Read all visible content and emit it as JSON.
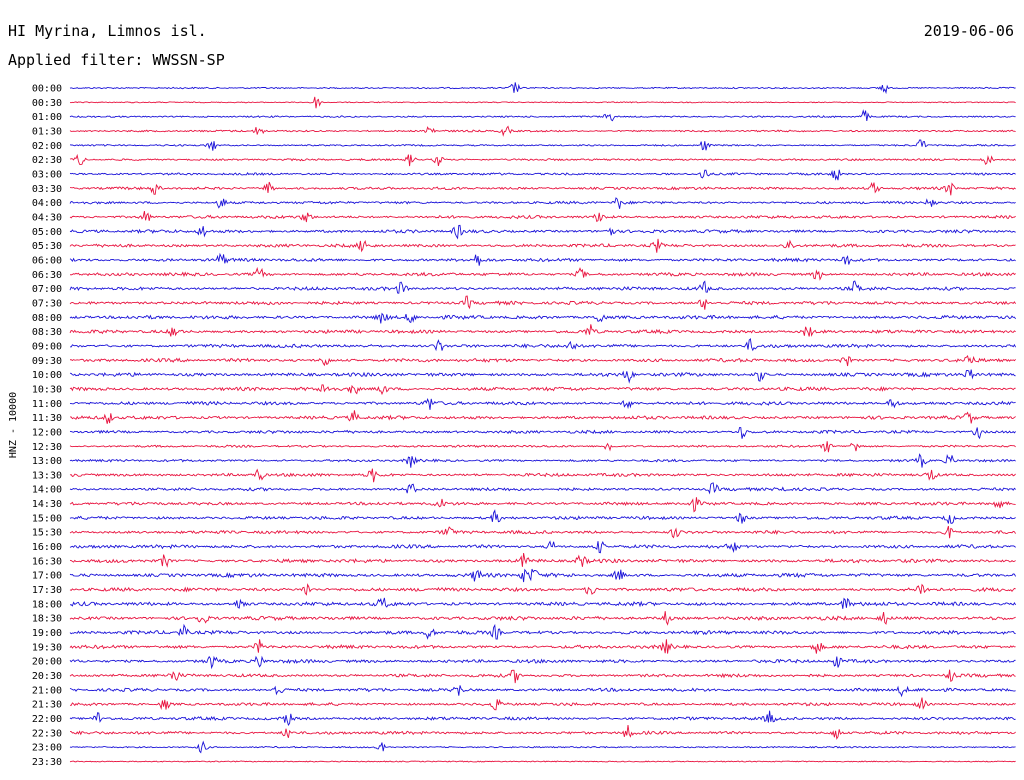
{
  "header": {
    "station": "HI Myrina, Limnos isl.",
    "date": "2019-06-06",
    "filter": "Applied filter: WWSSN-SP"
  },
  "chart_data": {
    "type": "line",
    "title": "HI Myrina, Limnos isl.",
    "subtitle": "Applied filter: WWSSN-SP",
    "ylabel": "HNZ - 10000",
    "xlabel": "",
    "grid": false,
    "colors": {
      "even": "#1a12d8",
      "odd": "#e8133f"
    },
    "rows": [
      {
        "label": "00:00",
        "activity": 0.15,
        "bursts": [
          0.47,
          0.86
        ]
      },
      {
        "label": "00:30",
        "activity": 0.05,
        "bursts": [
          0.26
        ]
      },
      {
        "label": "01:00",
        "activity": 0.2,
        "bursts": [
          0.57,
          0.84
        ]
      },
      {
        "label": "01:30",
        "activity": 0.25,
        "bursts": [
          0.2,
          0.38,
          0.46
        ]
      },
      {
        "label": "02:00",
        "activity": 0.2,
        "bursts": [
          0.15,
          0.67,
          0.9
        ]
      },
      {
        "label": "02:30",
        "activity": 0.3,
        "bursts": [
          0.01,
          0.36,
          0.39,
          0.97
        ]
      },
      {
        "label": "03:00",
        "activity": 0.35,
        "bursts": [
          0.67,
          0.81
        ]
      },
      {
        "label": "03:30",
        "activity": 0.45,
        "bursts": [
          0.09,
          0.21,
          0.85,
          0.93
        ]
      },
      {
        "label": "04:00",
        "activity": 0.45,
        "bursts": [
          0.16,
          0.58,
          0.91
        ]
      },
      {
        "label": "04:30",
        "activity": 0.55,
        "bursts": [
          0.08,
          0.25,
          0.56
        ]
      },
      {
        "label": "05:00",
        "activity": 0.6,
        "bursts": [
          0.14,
          0.41,
          0.57
        ]
      },
      {
        "label": "05:30",
        "activity": 0.6,
        "bursts": [
          0.31,
          0.62,
          0.76
        ]
      },
      {
        "label": "06:00",
        "activity": 0.6,
        "bursts": [
          0.16,
          0.43,
          0.82
        ]
      },
      {
        "label": "06:30",
        "activity": 0.6,
        "bursts": [
          0.2,
          0.54,
          0.79
        ]
      },
      {
        "label": "07:00",
        "activity": 0.65,
        "bursts": [
          0.35,
          0.67,
          0.83
        ]
      },
      {
        "label": "07:30",
        "activity": 0.65,
        "bursts": [
          0.42,
          0.67
        ]
      },
      {
        "label": "08:00",
        "activity": 0.7,
        "bursts": [
          0.33,
          0.36,
          0.56
        ]
      },
      {
        "label": "08:30",
        "activity": 0.65,
        "bursts": [
          0.11,
          0.55,
          0.78
        ]
      },
      {
        "label": "09:00",
        "activity": 0.65,
        "bursts": [
          0.39,
          0.53,
          0.72
        ]
      },
      {
        "label": "09:30",
        "activity": 0.65,
        "bursts": [
          0.27,
          0.82,
          0.95
        ]
      },
      {
        "label": "10:00",
        "activity": 0.7,
        "bursts": [
          0.59,
          0.73,
          0.95
        ]
      },
      {
        "label": "10:30",
        "activity": 0.7,
        "bursts": [
          0.27,
          0.3,
          0.33
        ]
      },
      {
        "label": "11:00",
        "activity": 0.65,
        "bursts": [
          0.38,
          0.59,
          0.87
        ]
      },
      {
        "label": "11:30",
        "activity": 0.65,
        "bursts": [
          0.04,
          0.3,
          0.95
        ]
      },
      {
        "label": "12:00",
        "activity": 0.55,
        "bursts": [
          0.71,
          0.96
        ]
      },
      {
        "label": "12:30",
        "activity": 0.35,
        "bursts": [
          0.57,
          0.8,
          0.83
        ]
      },
      {
        "label": "13:00",
        "activity": 0.4,
        "bursts": [
          0.36,
          0.9,
          0.93
        ]
      },
      {
        "label": "13:30",
        "activity": 0.6,
        "bursts": [
          0.2,
          0.32,
          0.91
        ]
      },
      {
        "label": "14:00",
        "activity": 0.55,
        "bursts": [
          0.36,
          0.68,
          0.75
        ]
      },
      {
        "label": "14:30",
        "activity": 0.6,
        "bursts": [
          0.39,
          0.66,
          0.98
        ]
      },
      {
        "label": "15:00",
        "activity": 0.6,
        "bursts": [
          0.45,
          0.71,
          0.93
        ]
      },
      {
        "label": "15:30",
        "activity": 0.6,
        "bursts": [
          0.4,
          0.64,
          0.93
        ]
      },
      {
        "label": "16:00",
        "activity": 0.65,
        "bursts": [
          0.51,
          0.56,
          0.7
        ]
      },
      {
        "label": "16:30",
        "activity": 0.7,
        "bursts": [
          0.1,
          0.48,
          0.54
        ]
      },
      {
        "label": "17:00",
        "activity": 0.75,
        "bursts": [
          0.43,
          0.48,
          0.49,
          0.58
        ]
      },
      {
        "label": "17:30",
        "activity": 0.7,
        "bursts": [
          0.25,
          0.55,
          0.9
        ]
      },
      {
        "label": "18:00",
        "activity": 0.75,
        "bursts": [
          0.18,
          0.33,
          0.82
        ]
      },
      {
        "label": "18:30",
        "activity": 0.75,
        "bursts": [
          0.14,
          0.63,
          0.86
        ]
      },
      {
        "label": "19:00",
        "activity": 0.7,
        "bursts": [
          0.12,
          0.38,
          0.45
        ]
      },
      {
        "label": "19:30",
        "activity": 0.65,
        "bursts": [
          0.2,
          0.63,
          0.79
        ]
      },
      {
        "label": "20:00",
        "activity": 0.65,
        "bursts": [
          0.15,
          0.2,
          0.81
        ]
      },
      {
        "label": "20:30",
        "activity": 0.6,
        "bursts": [
          0.11,
          0.47,
          0.93
        ]
      },
      {
        "label": "21:00",
        "activity": 0.6,
        "bursts": [
          0.22,
          0.41,
          0.88
        ]
      },
      {
        "label": "21:30",
        "activity": 0.55,
        "bursts": [
          0.1,
          0.45,
          0.9
        ]
      },
      {
        "label": "22:00",
        "activity": 0.6,
        "bursts": [
          0.03,
          0.23,
          0.74
        ]
      },
      {
        "label": "22:30",
        "activity": 0.55,
        "bursts": [
          0.23,
          0.59,
          0.81
        ]
      },
      {
        "label": "23:00",
        "activity": 0.15,
        "bursts": [
          0.14,
          0.33
        ]
      },
      {
        "label": "23:30",
        "activity": 0.05,
        "bursts": []
      }
    ]
  }
}
